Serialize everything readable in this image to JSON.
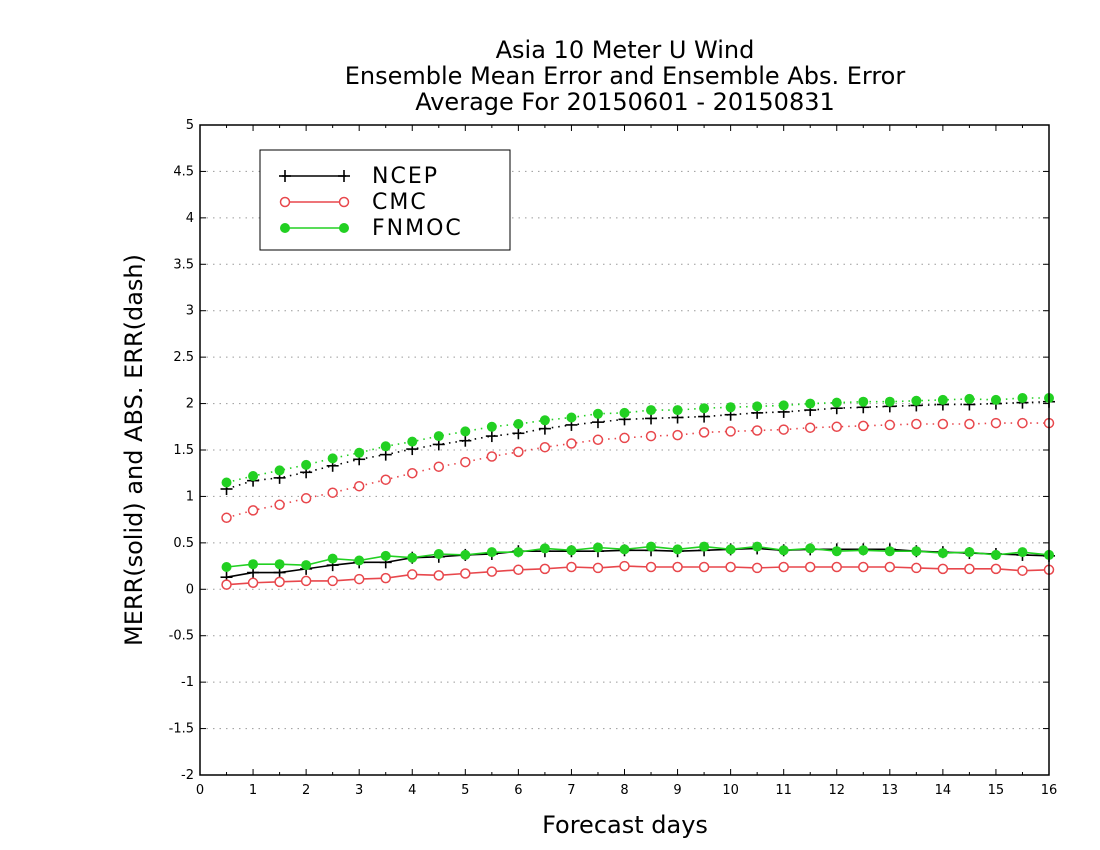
{
  "chart_data": {
    "type": "line",
    "title_lines": [
      "Asia 10 Meter U Wind",
      "Ensemble Mean Error and Ensemble Abs. Error",
      "Average For 20150601 - 20150831"
    ],
    "xlabel": "Forecast days",
    "ylabel": "MERR(solid) and ABS. ERR(dash)",
    "xlim": [
      0,
      16
    ],
    "ylim": [
      -2,
      5
    ],
    "x_ticks": [
      "0",
      "1",
      "2",
      "3",
      "4",
      "5",
      "6",
      "7",
      "8",
      "9",
      "10",
      "11",
      "12",
      "13",
      "14",
      "15",
      "16"
    ],
    "y_ticks": [
      "-2",
      "-1.5",
      "-1",
      "-0.5",
      "0",
      "0.5",
      "1",
      "1.5",
      "2",
      "2.5",
      "3",
      "3.5",
      "4",
      "4.5",
      "5"
    ],
    "grid": "horizontal dotted",
    "legend_position": "top-left",
    "x": [
      0.5,
      1,
      1.5,
      2,
      2.5,
      3,
      3.5,
      4,
      4.5,
      5,
      5.5,
      6,
      6.5,
      7,
      7.5,
      8,
      8.5,
      9,
      9.5,
      10,
      10.5,
      11,
      11.5,
      12,
      12.5,
      13,
      13.5,
      14,
      14.5,
      15,
      15.5,
      16
    ],
    "series": [
      {
        "name": "NCEP",
        "color": "#000000",
        "marker": "plus",
        "mean_error": [
          0.13,
          0.18,
          0.18,
          0.22,
          0.26,
          0.29,
          0.29,
          0.34,
          0.35,
          0.37,
          0.38,
          0.41,
          0.41,
          0.41,
          0.41,
          0.42,
          0.42,
          0.41,
          0.42,
          0.43,
          0.44,
          0.42,
          0.43,
          0.43,
          0.43,
          0.43,
          0.41,
          0.4,
          0.39,
          0.38,
          0.37,
          0.36
        ],
        "abs_error": [
          1.08,
          1.17,
          1.2,
          1.26,
          1.33,
          1.4,
          1.45,
          1.51,
          1.56,
          1.6,
          1.65,
          1.68,
          1.73,
          1.77,
          1.8,
          1.83,
          1.84,
          1.85,
          1.86,
          1.88,
          1.9,
          1.91,
          1.93,
          1.95,
          1.96,
          1.97,
          1.98,
          1.99,
          1.99,
          2.0,
          2.01,
          2.02
        ]
      },
      {
        "name": "CMC",
        "color": "#e8474c",
        "marker": "open-circle",
        "mean_error": [
          0.05,
          0.07,
          0.08,
          0.09,
          0.09,
          0.11,
          0.12,
          0.16,
          0.15,
          0.17,
          0.19,
          0.21,
          0.22,
          0.24,
          0.23,
          0.25,
          0.24,
          0.24,
          0.24,
          0.24,
          0.23,
          0.24,
          0.24,
          0.24,
          0.24,
          0.24,
          0.23,
          0.22,
          0.22,
          0.22,
          0.2,
          0.21
        ],
        "abs_error": [
          0.77,
          0.85,
          0.91,
          0.98,
          1.04,
          1.11,
          1.18,
          1.25,
          1.32,
          1.37,
          1.43,
          1.48,
          1.53,
          1.57,
          1.61,
          1.63,
          1.65,
          1.66,
          1.69,
          1.7,
          1.71,
          1.72,
          1.74,
          1.75,
          1.76,
          1.77,
          1.78,
          1.78,
          1.78,
          1.79,
          1.79,
          1.79
        ]
      },
      {
        "name": "FNMOC",
        "color": "#22d022",
        "marker": "filled-circle",
        "mean_error": [
          0.24,
          0.27,
          0.27,
          0.26,
          0.33,
          0.31,
          0.36,
          0.34,
          0.38,
          0.37,
          0.4,
          0.4,
          0.44,
          0.42,
          0.45,
          0.43,
          0.46,
          0.43,
          0.46,
          0.43,
          0.46,
          0.42,
          0.44,
          0.41,
          0.42,
          0.41,
          0.41,
          0.39,
          0.4,
          0.37,
          0.4,
          0.37
        ],
        "abs_error": [
          1.15,
          1.22,
          1.28,
          1.34,
          1.41,
          1.47,
          1.54,
          1.59,
          1.65,
          1.7,
          1.75,
          1.78,
          1.82,
          1.85,
          1.89,
          1.9,
          1.93,
          1.93,
          1.95,
          1.96,
          1.97,
          1.98,
          2.0,
          2.01,
          2.02,
          2.02,
          2.03,
          2.04,
          2.05,
          2.04,
          2.06,
          2.06
        ]
      }
    ]
  }
}
